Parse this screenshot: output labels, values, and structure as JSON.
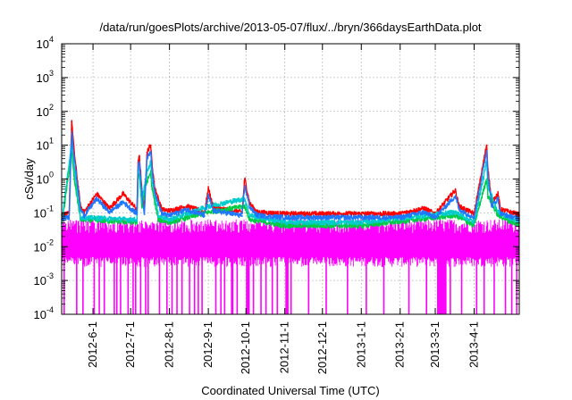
{
  "chart_data": {
    "type": "line",
    "title": "/data/run/goesPlots/archive/2013-05-07/flux/../bryn/366daysEarthData.plot",
    "xlabel": "Coordinated Universal Time (UTC)",
    "ylabel": "cSv/day",
    "yscale": "log",
    "ylim": [
      0.0001,
      10000
    ],
    "xlim": [
      "2012-05-07",
      "2013-05-07"
    ],
    "grid": true,
    "legend": "none",
    "y_ticks": [
      {
        "value": 0.0001,
        "base": "10",
        "exp": "-4"
      },
      {
        "value": 0.001,
        "base": "10",
        "exp": "-3"
      },
      {
        "value": 0.01,
        "base": "10",
        "exp": "-2"
      },
      {
        "value": 0.1,
        "base": "10",
        "exp": "-1"
      },
      {
        "value": 1,
        "base": "10",
        "exp": "0"
      },
      {
        "value": 10,
        "base": "10",
        "exp": "1"
      },
      {
        "value": 100,
        "base": "10",
        "exp": "2"
      },
      {
        "value": 1000,
        "base": "10",
        "exp": "3"
      },
      {
        "value": 10000,
        "base": "10",
        "exp": "4"
      }
    ],
    "x_ticks": [
      {
        "label": "2012-6-1",
        "date": "2012-06-01"
      },
      {
        "label": "2012-7-1",
        "date": "2012-07-01"
      },
      {
        "label": "2012-8-1",
        "date": "2012-08-01"
      },
      {
        "label": "2012-9-1",
        "date": "2012-09-01"
      },
      {
        "label": "2012-10-1",
        "date": "2012-10-01"
      },
      {
        "label": "2012-11-1",
        "date": "2012-11-01"
      },
      {
        "label": "2012-12-1",
        "date": "2012-12-01"
      },
      {
        "label": "2013-1-1",
        "date": "2013-01-01"
      },
      {
        "label": "2013-2-1",
        "date": "2013-02-01"
      },
      {
        "label": "2013-3-1",
        "date": "2013-03-01"
      },
      {
        "label": "2013-4-1",
        "date": "2013-04-01"
      }
    ],
    "series": [
      {
        "color": "#ff0000",
        "baseline": 0.085,
        "x": [
          "2012-05-07",
          "2012-05-13",
          "2012-05-15",
          "2012-05-17",
          "2012-05-22",
          "2012-05-25",
          "2012-06-04",
          "2012-06-14",
          "2012-06-25",
          "2012-07-06",
          "2012-07-07",
          "2012-07-08",
          "2012-07-10",
          "2012-07-12",
          "2012-07-14",
          "2012-07-17",
          "2012-07-18",
          "2012-07-20",
          "2012-07-23",
          "2012-07-26",
          "2012-08-01",
          "2012-08-15",
          "2012-08-29",
          "2012-09-01",
          "2012-09-05",
          "2012-09-28",
          "2012-09-30",
          "2012-10-04",
          "2012-10-10",
          "2012-11-01",
          "2012-12-01",
          "2013-01-01",
          "2013-02-01",
          "2013-02-20",
          "2013-03-01",
          "2013-03-17",
          "2013-03-20",
          "2013-04-01",
          "2013-04-11",
          "2013-04-12",
          "2013-04-15",
          "2013-04-20",
          "2013-04-22",
          "2013-05-07"
        ],
        "y": [
          0.085,
          0.09,
          50,
          6,
          0.15,
          0.1,
          0.35,
          0.13,
          0.35,
          0.12,
          3,
          4.5,
          0.5,
          0.12,
          6,
          10,
          3,
          0.6,
          0.25,
          0.12,
          0.11,
          0.15,
          0.1,
          0.5,
          0.14,
          0.1,
          1,
          0.18,
          0.1,
          0.09,
          0.09,
          0.09,
          0.09,
          0.13,
          0.09,
          0.45,
          0.15,
          0.09,
          10,
          2,
          0.2,
          0.35,
          0.12,
          0.085
        ]
      },
      {
        "color": "#00cc44",
        "baseline": 0.04,
        "x": [
          "2012-05-07",
          "2012-05-15",
          "2012-05-17",
          "2012-05-22",
          "2012-07-06",
          "2012-07-07",
          "2012-07-08",
          "2012-07-10",
          "2012-07-14",
          "2012-07-17",
          "2012-07-18",
          "2012-07-23",
          "2012-08-01",
          "2012-09-01",
          "2012-09-30",
          "2012-10-04",
          "2012-11-01",
          "2013-01-01",
          "2013-03-17",
          "2013-04-01",
          "2013-04-11",
          "2013-04-12",
          "2013-04-20",
          "2013-05-07"
        ],
        "y": [
          0.04,
          6,
          1,
          0.06,
          0.05,
          1,
          1.3,
          0.15,
          0.8,
          1.5,
          0.5,
          0.06,
          0.05,
          0.1,
          0.15,
          0.06,
          0.04,
          0.04,
          0.08,
          0.04,
          1,
          0.3,
          0.08,
          0.04
        ]
      },
      {
        "color": "#00cccc",
        "baseline": 0.05,
        "x": [
          "2012-05-07",
          "2012-05-15",
          "2012-05-17",
          "2012-05-22",
          "2012-07-06",
          "2012-07-07",
          "2012-07-08",
          "2012-07-10",
          "2012-07-14",
          "2012-07-17",
          "2012-07-18",
          "2012-07-23",
          "2012-08-01",
          "2012-09-01",
          "2012-09-30",
          "2012-10-04",
          "2012-11-01",
          "2013-01-01",
          "2013-03-17",
          "2013-04-01",
          "2013-04-11",
          "2013-04-12",
          "2013-04-20",
          "2013-05-07"
        ],
        "y": [
          0.05,
          12,
          2,
          0.07,
          0.06,
          1.5,
          2,
          0.2,
          1.5,
          3,
          1,
          0.08,
          0.06,
          0.15,
          0.25,
          0.08,
          0.05,
          0.05,
          0.1,
          0.05,
          3,
          0.6,
          0.1,
          0.05
        ]
      },
      {
        "color": "#1e78ff",
        "baseline": 0.065,
        "x": [
          "2012-05-07",
          "2012-05-13",
          "2012-05-15",
          "2012-05-17",
          "2012-05-22",
          "2012-05-25",
          "2012-06-04",
          "2012-06-14",
          "2012-06-25",
          "2012-07-06",
          "2012-07-07",
          "2012-07-08",
          "2012-07-10",
          "2012-07-12",
          "2012-07-14",
          "2012-07-17",
          "2012-07-18",
          "2012-07-20",
          "2012-07-23",
          "2012-07-26",
          "2012-08-01",
          "2012-08-15",
          "2012-08-29",
          "2012-09-01",
          "2012-09-05",
          "2012-09-28",
          "2012-09-30",
          "2012-10-04",
          "2012-10-10",
          "2012-11-01",
          "2012-12-01",
          "2013-01-01",
          "2013-02-01",
          "2013-02-20",
          "2013-03-01",
          "2013-03-17",
          "2013-03-20",
          "2013-04-01",
          "2013-04-11",
          "2013-04-12",
          "2013-04-15",
          "2013-04-20",
          "2013-04-22",
          "2013-05-07"
        ],
        "y": [
          0.065,
          0.07,
          25,
          4,
          0.12,
          0.08,
          0.25,
          0.1,
          0.2,
          0.09,
          2.2,
          3.2,
          0.35,
          0.09,
          4,
          6.5,
          2,
          0.45,
          0.18,
          0.09,
          0.08,
          0.12,
          0.08,
          0.3,
          0.11,
          0.08,
          0.6,
          0.14,
          0.08,
          0.07,
          0.07,
          0.07,
          0.07,
          0.1,
          0.07,
          0.3,
          0.12,
          0.07,
          6.5,
          1.4,
          0.15,
          0.25,
          0.09,
          0.065
        ]
      },
      {
        "color": "#ff00ff",
        "baseline": 0.01,
        "band": [
          0.005,
          0.025
        ],
        "dropout_dates": [
          "2012-05-09",
          "2012-05-19",
          "2012-05-24",
          "2012-06-02",
          "2012-06-06",
          "2012-06-10",
          "2012-06-18",
          "2012-06-20",
          "2012-06-23",
          "2012-06-29",
          "2012-07-03",
          "2012-07-05",
          "2012-07-09",
          "2012-07-13",
          "2012-07-15",
          "2012-07-24",
          "2012-07-30",
          "2012-08-03",
          "2012-08-07",
          "2012-08-11",
          "2012-08-17",
          "2012-08-21",
          "2012-08-24",
          "2012-08-27",
          "2012-09-07",
          "2012-09-11",
          "2012-09-14",
          "2012-09-24",
          "2012-10-07",
          "2012-10-13",
          "2012-10-17",
          "2012-10-22",
          "2012-10-26",
          "2012-11-02",
          "2012-11-06",
          "2012-11-20",
          "2012-12-04",
          "2012-12-21",
          "2013-01-05",
          "2013-01-19",
          "2013-02-08",
          "2013-02-22",
          "2013-03-03",
          "2013-03-05",
          "2013-03-09",
          "2013-03-13",
          "2013-03-22",
          "2013-04-03",
          "2013-04-09",
          "2013-04-17",
          "2013-04-26",
          "2013-05-01",
          "2013-05-05"
        ],
        "dropout_ranges": [
          [
            "2012-09-19",
            "2012-09-21"
          ],
          [
            "2012-10-01",
            "2012-10-04"
          ],
          [
            "2012-11-02",
            "2012-11-04"
          ],
          [
            "2013-03-03",
            "2013-03-10"
          ]
        ]
      }
    ]
  }
}
